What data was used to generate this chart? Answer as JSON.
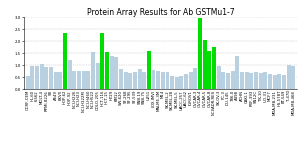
{
  "title": "Protein Array Results for Ab GSTMu1-7",
  "ylim": [
    0,
    3.0
  ],
  "yticks": [
    0.0,
    0.5,
    1.0,
    1.5,
    2.0,
    2.5,
    3.0
  ],
  "bar_color_default": "#b8d0e0",
  "bar_color_high": "#00dd00",
  "labels": [
    "CCRF-CEM",
    "HL-60",
    "K-562",
    "MOLT-4",
    "RPMI-8226",
    "SR",
    "A549",
    "EKVX",
    "HOP-62",
    "HOP-92",
    "NCI-H226",
    "NCI-H23",
    "NCI-H322M",
    "NCI-H460",
    "NCI-H522",
    "COLO-205",
    "HCT-116",
    "HCT-15",
    "HT29",
    "KM12",
    "SW-620",
    "SF-268",
    "SF-295",
    "SF-539",
    "SNB-19",
    "SNB-75",
    "U251",
    "LOX-IMVI",
    "MALME-3M",
    "M14",
    "SK-MEL-2",
    "SK-MEL-28",
    "SK-MEL-5",
    "UACC-257",
    "UACC-62",
    "IGROV1",
    "OVCAR-3",
    "OVCAR-4",
    "OVCAR-5",
    "OVCAR-8",
    "NCI/ADR-RES",
    "SK-OV-3",
    "PC-3",
    "DU-145",
    "786-0",
    "A498",
    "ACHN",
    "CAKI-1",
    "RXF-393",
    "SN12C",
    "TK-10",
    "UO-31",
    "MCF7",
    "MDA-MB-231",
    "HS-578T",
    "BT-549",
    "T-47D",
    "MDA-MB-468"
  ],
  "values": [
    0.55,
    0.95,
    0.97,
    1.05,
    0.93,
    0.93,
    0.72,
    0.7,
    2.33,
    1.2,
    0.77,
    0.75,
    0.78,
    0.75,
    1.55,
    1.1,
    2.33,
    1.55,
    1.37,
    1.35,
    0.83,
    0.72,
    0.68,
    0.72,
    0.85,
    0.7,
    1.6,
    0.82,
    0.75,
    0.72,
    0.72,
    0.55,
    0.5,
    0.55,
    0.65,
    0.7,
    0.9,
    2.98,
    2.07,
    1.6,
    1.75,
    0.97,
    0.72,
    0.68,
    0.77,
    1.37,
    0.72,
    0.7,
    0.68,
    0.72,
    0.68,
    0.7,
    0.65,
    0.6,
    0.65,
    0.6,
    1.0,
    0.97
  ],
  "green_indices": [
    8,
    16,
    17,
    26,
    37,
    38,
    39,
    40
  ],
  "background_color": "#ffffff",
  "grid_color": "#aaaaaa",
  "title_fontsize": 5.5,
  "tick_fontsize": 2.8,
  "ylabel_fontsize": 3.5
}
